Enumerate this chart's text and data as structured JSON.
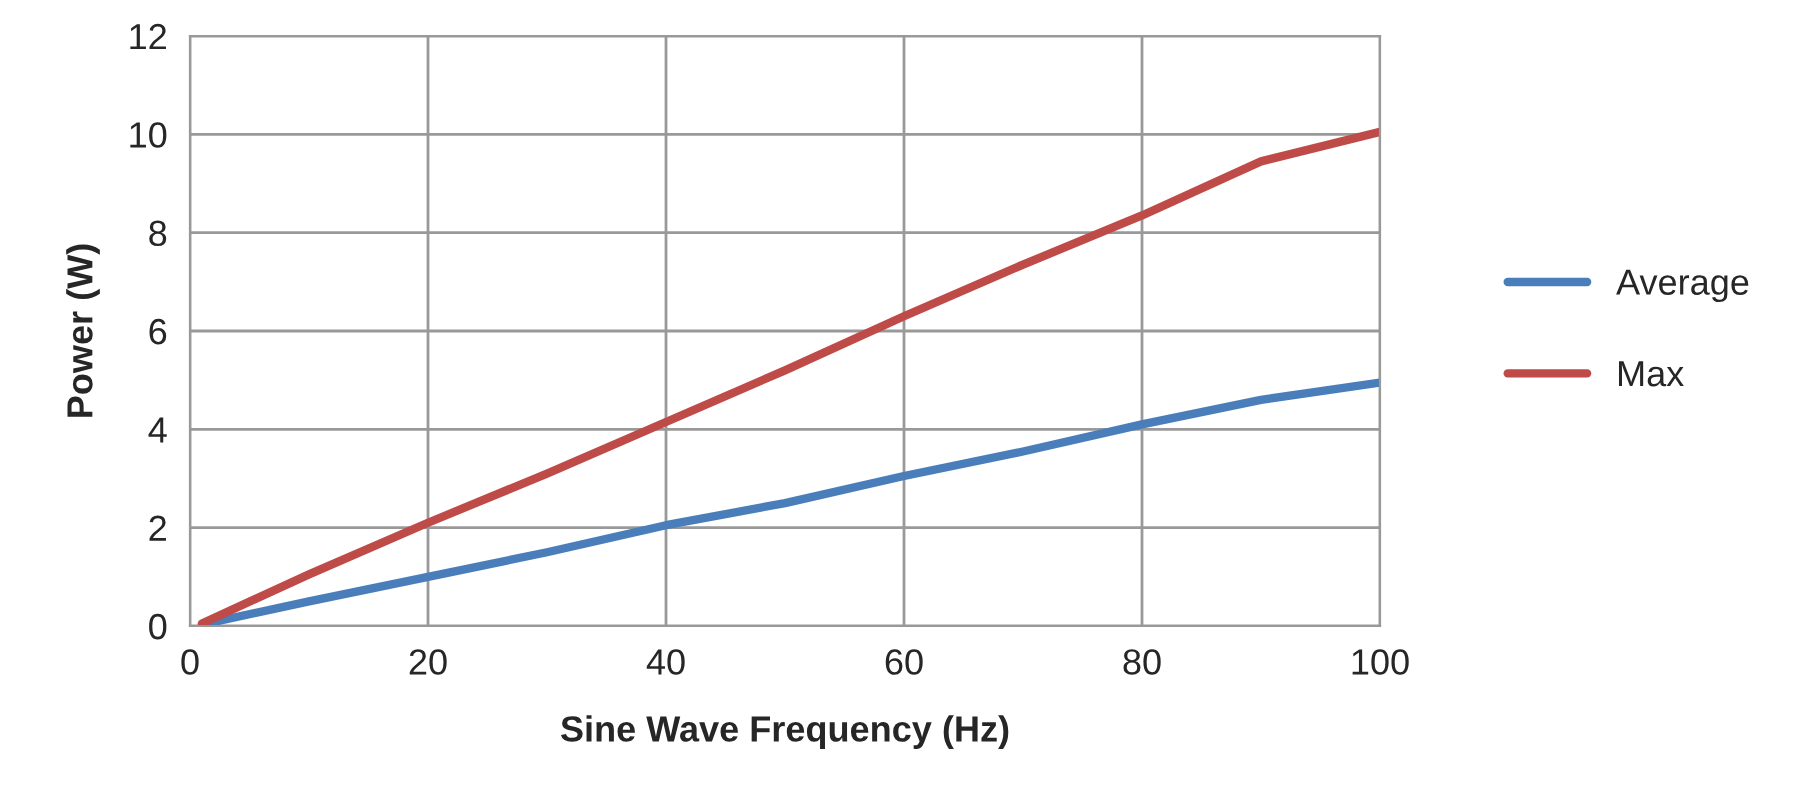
{
  "chart_data": {
    "type": "line",
    "xlabel": "Sine Wave Frequency (Hz)",
    "ylabel": "Power (W)",
    "x": [
      1,
      10,
      20,
      30,
      40,
      50,
      60,
      70,
      80,
      90,
      100
    ],
    "series": [
      {
        "name": "Average",
        "color": "#4a7ebb",
        "values": [
          0.03,
          0.5,
          1.0,
          1.5,
          2.05,
          2.5,
          3.05,
          3.55,
          4.1,
          4.6,
          4.95
        ]
      },
      {
        "name": "Max",
        "color": "#be4b48",
        "values": [
          0.05,
          1.05,
          2.1,
          3.1,
          4.15,
          5.2,
          6.3,
          7.35,
          8.35,
          9.45,
          10.05
        ]
      }
    ],
    "xlim": [
      0,
      100
    ],
    "xticks": [
      0,
      20,
      40,
      60,
      80,
      100
    ],
    "ylim": [
      0,
      12
    ],
    "yticks": [
      0,
      2,
      4,
      6,
      8,
      10,
      12
    ],
    "grid": true,
    "legend": "right",
    "marker": "none",
    "line_style": "solid"
  }
}
